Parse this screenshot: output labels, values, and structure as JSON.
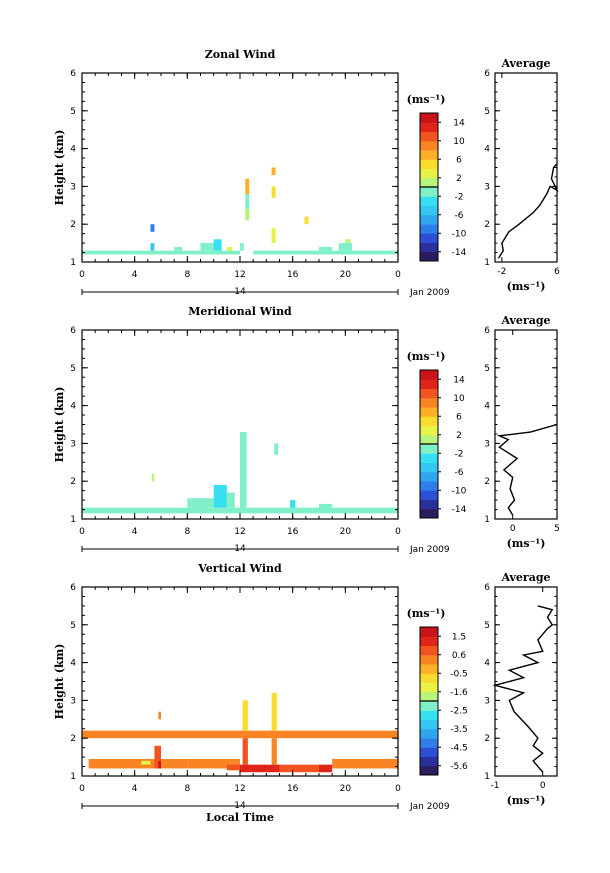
{
  "chart_data": [
    {
      "type": "heatmap",
      "title": "Zonal Wind",
      "ylabel": "Height (km)",
      "xlabel": "",
      "x_ticks": [
        "0",
        "4",
        "8",
        "12",
        "16",
        "20",
        "0"
      ],
      "y_ticks": [
        "1",
        "2",
        "3",
        "4",
        "5",
        "6"
      ],
      "date_axis": {
        "day": "14",
        "label": "Jan 2009"
      },
      "xlim": [
        0,
        24
      ],
      "ylim": [
        1,
        6
      ],
      "colorbar": {
        "unit": "(ms⁻¹)",
        "ticks": [
          "14",
          "10",
          "6",
          "2",
          "-2",
          "-6",
          "-10",
          "-14"
        ],
        "range": [
          -16,
          16
        ],
        "colors": [
          "#2b1c5e",
          "#2a2f9c",
          "#2c4fd6",
          "#2f7de8",
          "#2fa6ee",
          "#33c7f2",
          "#36e0f0",
          "#7ff0c8",
          "#b8f57a",
          "#e8f248",
          "#f9dc2e",
          "#fbb027",
          "#f98424",
          "#f25420",
          "#e02419",
          "#c8141a"
        ]
      },
      "cells": [
        {
          "x0": 0.0,
          "x1": 4.0,
          "y0": 1.2,
          "y1": 1.3,
          "v": -2
        },
        {
          "x0": 4.0,
          "x1": 6.0,
          "y0": 1.2,
          "y1": 1.3,
          "v": -1
        },
        {
          "x0": 5.2,
          "x1": 5.5,
          "y0": 1.3,
          "y1": 1.5,
          "v": -6
        },
        {
          "x0": 5.2,
          "x1": 5.5,
          "y0": 1.8,
          "y1": 2.0,
          "v": -10
        },
        {
          "x0": 6.0,
          "x1": 8.0,
          "y0": 1.2,
          "y1": 1.3,
          "v": -2
        },
        {
          "x0": 7.0,
          "x1": 7.6,
          "y0": 1.3,
          "y1": 1.4,
          "v": -2
        },
        {
          "x0": 8.0,
          "x1": 12.0,
          "y0": 1.2,
          "y1": 1.3,
          "v": -2
        },
        {
          "x0": 9.0,
          "x1": 10.0,
          "y0": 1.3,
          "y1": 1.5,
          "v": -2
        },
        {
          "x0": 10.0,
          "x1": 10.6,
          "y0": 1.3,
          "y1": 1.6,
          "v": -3
        },
        {
          "x0": 11.0,
          "x1": 11.4,
          "y0": 1.3,
          "y1": 1.4,
          "v": 2
        },
        {
          "x0": 12.0,
          "x1": 12.3,
          "y0": 1.3,
          "y1": 1.5,
          "v": -2
        },
        {
          "x0": 12.4,
          "x1": 12.7,
          "y0": 2.1,
          "y1": 2.4,
          "v": 0
        },
        {
          "x0": 12.4,
          "x1": 12.7,
          "y0": 2.8,
          "y1": 3.2,
          "v": 6
        },
        {
          "x0": 12.4,
          "x1": 12.7,
          "y0": 2.4,
          "y1": 2.8,
          "v": -1
        },
        {
          "x0": 13.0,
          "x1": 16.0,
          "y0": 1.2,
          "y1": 1.3,
          "v": -2
        },
        {
          "x0": 14.4,
          "x1": 14.7,
          "y0": 1.5,
          "y1": 1.9,
          "v": 3
        },
        {
          "x0": 14.4,
          "x1": 14.7,
          "y0": 2.7,
          "y1": 3.0,
          "v": 4
        },
        {
          "x0": 14.4,
          "x1": 14.7,
          "y0": 3.3,
          "y1": 3.5,
          "v": 6
        },
        {
          "x0": 16.0,
          "x1": 24.0,
          "y0": 1.2,
          "y1": 1.3,
          "v": -2
        },
        {
          "x0": 16.9,
          "x1": 17.2,
          "y0": 2.0,
          "y1": 2.2,
          "v": 4
        },
        {
          "x0": 18.0,
          "x1": 19.0,
          "y0": 1.3,
          "y1": 1.4,
          "v": -2
        },
        {
          "x0": 19.5,
          "x1": 20.5,
          "y0": 1.3,
          "y1": 1.5,
          "v": -2
        },
        {
          "x0": 20.0,
          "x1": 20.4,
          "y0": 1.5,
          "y1": 1.6,
          "v": 1
        }
      ],
      "profile": {
        "title": "Average",
        "xlabel": "(ms⁻¹)",
        "x_ticks": [
          "-2",
          "6"
        ],
        "xlim": [
          -3,
          6
        ],
        "y_ticks": [
          "1",
          "2",
          "3",
          "4",
          "5",
          "6"
        ],
        "points": [
          [
            -2.5,
            1.1
          ],
          [
            -1.8,
            1.3
          ],
          [
            -2.0,
            1.5
          ],
          [
            -1.0,
            1.8
          ],
          [
            0.5,
            2.0
          ],
          [
            2.5,
            2.3
          ],
          [
            3.5,
            2.5
          ],
          [
            4.5,
            2.8
          ],
          [
            5.0,
            3.0
          ],
          [
            6.0,
            2.9
          ],
          [
            5.2,
            3.2
          ],
          [
            5.5,
            3.5
          ],
          [
            6.0,
            3.6
          ]
        ]
      }
    },
    {
      "type": "heatmap",
      "title": "Meridional Wind",
      "ylabel": "Height (km)",
      "xlabel": "",
      "x_ticks": [
        "0",
        "4",
        "8",
        "12",
        "16",
        "20",
        "0"
      ],
      "y_ticks": [
        "1",
        "2",
        "3",
        "4",
        "5",
        "6"
      ],
      "date_axis": {
        "day": "14",
        "label": "Jan 2009"
      },
      "xlim": [
        0,
        24
      ],
      "ylim": [
        1,
        6
      ],
      "colorbar": {
        "unit": "(ms⁻¹)",
        "ticks": [
          "14",
          "10",
          "6",
          "2",
          "-2",
          "-6",
          "-10",
          "-14"
        ],
        "range": [
          -16,
          16
        ],
        "colors": [
          "#2b1c5e",
          "#2a2f9c",
          "#2c4fd6",
          "#2f7de8",
          "#2fa6ee",
          "#33c7f2",
          "#36e0f0",
          "#7ff0c8",
          "#b8f57a",
          "#e8f248",
          "#f9dc2e",
          "#fbb027",
          "#f98424",
          "#f25420",
          "#e02419",
          "#c8141a"
        ]
      },
      "cells": [
        {
          "x0": 0.0,
          "x1": 24.0,
          "y0": 1.15,
          "y1": 1.3,
          "v": -2
        },
        {
          "x0": 5.3,
          "x1": 5.5,
          "y0": 2.0,
          "y1": 2.2,
          "v": 0
        },
        {
          "x0": 8.0,
          "x1": 10.0,
          "y0": 1.3,
          "y1": 1.55,
          "v": -2
        },
        {
          "x0": 10.0,
          "x1": 11.0,
          "y0": 1.3,
          "y1": 1.9,
          "v": -3
        },
        {
          "x0": 11.0,
          "x1": 11.6,
          "y0": 1.3,
          "y1": 1.7,
          "v": -2
        },
        {
          "x0": 12.0,
          "x1": 12.5,
          "y0": 1.3,
          "y1": 2.4,
          "v": -2
        },
        {
          "x0": 12.0,
          "x1": 12.5,
          "y0": 2.4,
          "y1": 3.3,
          "v": -1
        },
        {
          "x0": 14.6,
          "x1": 14.9,
          "y0": 2.7,
          "y1": 3.0,
          "v": -2
        },
        {
          "x0": 15.8,
          "x1": 16.2,
          "y0": 1.3,
          "y1": 1.5,
          "v": -3
        },
        {
          "x0": 18.0,
          "x1": 19.0,
          "y0": 1.3,
          "y1": 1.4,
          "v": -2
        }
      ],
      "profile": {
        "title": "Average",
        "xlabel": "(ms⁻¹)",
        "x_ticks": [
          "0",
          "5"
        ],
        "xlim": [
          -2,
          5
        ],
        "y_ticks": [
          "1",
          "2",
          "3",
          "4",
          "5",
          "6"
        ],
        "points": [
          [
            0.0,
            1.1
          ],
          [
            -0.5,
            1.3
          ],
          [
            0.2,
            1.5
          ],
          [
            -0.3,
            1.8
          ],
          [
            0.0,
            2.1
          ],
          [
            -1.0,
            2.3
          ],
          [
            0.5,
            2.6
          ],
          [
            -1.5,
            2.9
          ],
          [
            -0.5,
            3.1
          ],
          [
            -1.5,
            3.2
          ],
          [
            2.0,
            3.3
          ],
          [
            5.0,
            3.5
          ]
        ]
      }
    },
    {
      "type": "heatmap",
      "title": "Vertical Wind",
      "ylabel": "Height (km)",
      "xlabel": "Local Time",
      "x_ticks": [
        "0",
        "4",
        "8",
        "12",
        "16",
        "20",
        "0"
      ],
      "y_ticks": [
        "1",
        "2",
        "3",
        "4",
        "5",
        "6"
      ],
      "date_axis": {
        "day": "14",
        "label": "Jan 2009"
      },
      "xlim": [
        0,
        24
      ],
      "ylim": [
        1,
        6
      ],
      "colorbar": {
        "unit": "(ms⁻¹)",
        "ticks": [
          "1.5",
          "0.6",
          "-0.5",
          "-1.6",
          "-2.5",
          "-3.5",
          "-4.5",
          "-5.6"
        ],
        "range": [
          -6,
          2
        ],
        "colors": [
          "#2b1c5e",
          "#2a2f9c",
          "#2c4fd6",
          "#2f7de8",
          "#2fa6ee",
          "#33c7f2",
          "#36e0f0",
          "#7ff0c8",
          "#b8f57a",
          "#e8f248",
          "#f9dc2e",
          "#fbb027",
          "#f98424",
          "#f25420",
          "#e02419",
          "#c8141a"
        ]
      },
      "cells": [
        {
          "x0": 0.0,
          "x1": 24.0,
          "y0": 2.0,
          "y1": 2.2,
          "v": 0.2
        },
        {
          "x0": 0.5,
          "x1": 8.0,
          "y0": 1.2,
          "y1": 1.45,
          "v": 0.3
        },
        {
          "x0": 4.5,
          "x1": 5.2,
          "y0": 1.3,
          "y1": 1.4,
          "v": -1.2
        },
        {
          "x0": 5.5,
          "x1": 6.0,
          "y0": 1.2,
          "y1": 1.8,
          "v": 0.9
        },
        {
          "x0": 5.8,
          "x1": 6.0,
          "y0": 1.2,
          "y1": 1.4,
          "v": 1.7
        },
        {
          "x0": 5.8,
          "x1": 6.0,
          "y0": 2.5,
          "y1": 2.7,
          "v": 0.2
        },
        {
          "x0": 8.0,
          "x1": 12.0,
          "y0": 1.2,
          "y1": 1.45,
          "v": 0.3
        },
        {
          "x0": 11.0,
          "x1": 12.0,
          "y0": 1.15,
          "y1": 1.3,
          "v": 0.9
        },
        {
          "x0": 12.0,
          "x1": 15.0,
          "y0": 1.1,
          "y1": 1.3,
          "v": 1.0
        },
        {
          "x0": 12.2,
          "x1": 12.6,
          "y0": 1.3,
          "y1": 2.0,
          "v": 0.6
        },
        {
          "x0": 12.2,
          "x1": 12.6,
          "y0": 2.2,
          "y1": 3.0,
          "v": -0.8
        },
        {
          "x0": 14.4,
          "x1": 14.8,
          "y0": 1.3,
          "y1": 2.0,
          "v": 0.4
        },
        {
          "x0": 14.4,
          "x1": 14.8,
          "y0": 2.2,
          "y1": 3.2,
          "v": -1.0
        },
        {
          "x0": 15.0,
          "x1": 18.0,
          "y0": 1.1,
          "y1": 1.3,
          "v": 0.9
        },
        {
          "x0": 18.0,
          "x1": 19.0,
          "y0": 1.1,
          "y1": 1.3,
          "v": 1.2
        },
        {
          "x0": 19.0,
          "x1": 24.0,
          "y0": 1.2,
          "y1": 1.45,
          "v": 0.3
        }
      ],
      "profile": {
        "title": "Average",
        "xlabel": "(ms⁻¹)",
        "x_ticks": [
          "-1",
          "0"
        ],
        "xlim": [
          -1,
          0.3
        ],
        "y_ticks": [
          "1",
          "2",
          "3",
          "4",
          "5",
          "6"
        ],
        "points": [
          [
            0.0,
            1.1
          ],
          [
            -0.2,
            1.4
          ],
          [
            0.0,
            1.6
          ],
          [
            -0.2,
            1.8
          ],
          [
            -0.1,
            2.0
          ],
          [
            -0.3,
            2.3
          ],
          [
            -0.6,
            2.7
          ],
          [
            -0.7,
            3.0
          ],
          [
            -0.4,
            3.2
          ],
          [
            -1.0,
            3.4
          ],
          [
            -0.4,
            3.6
          ],
          [
            -0.7,
            3.8
          ],
          [
            -0.1,
            4.0
          ],
          [
            -0.4,
            4.2
          ],
          [
            0.0,
            4.3
          ],
          [
            -0.1,
            4.6
          ],
          [
            0.1,
            4.9
          ],
          [
            0.2,
            5.0
          ],
          [
            0.1,
            5.2
          ],
          [
            0.2,
            5.4
          ],
          [
            -0.1,
            5.5
          ]
        ]
      }
    }
  ]
}
